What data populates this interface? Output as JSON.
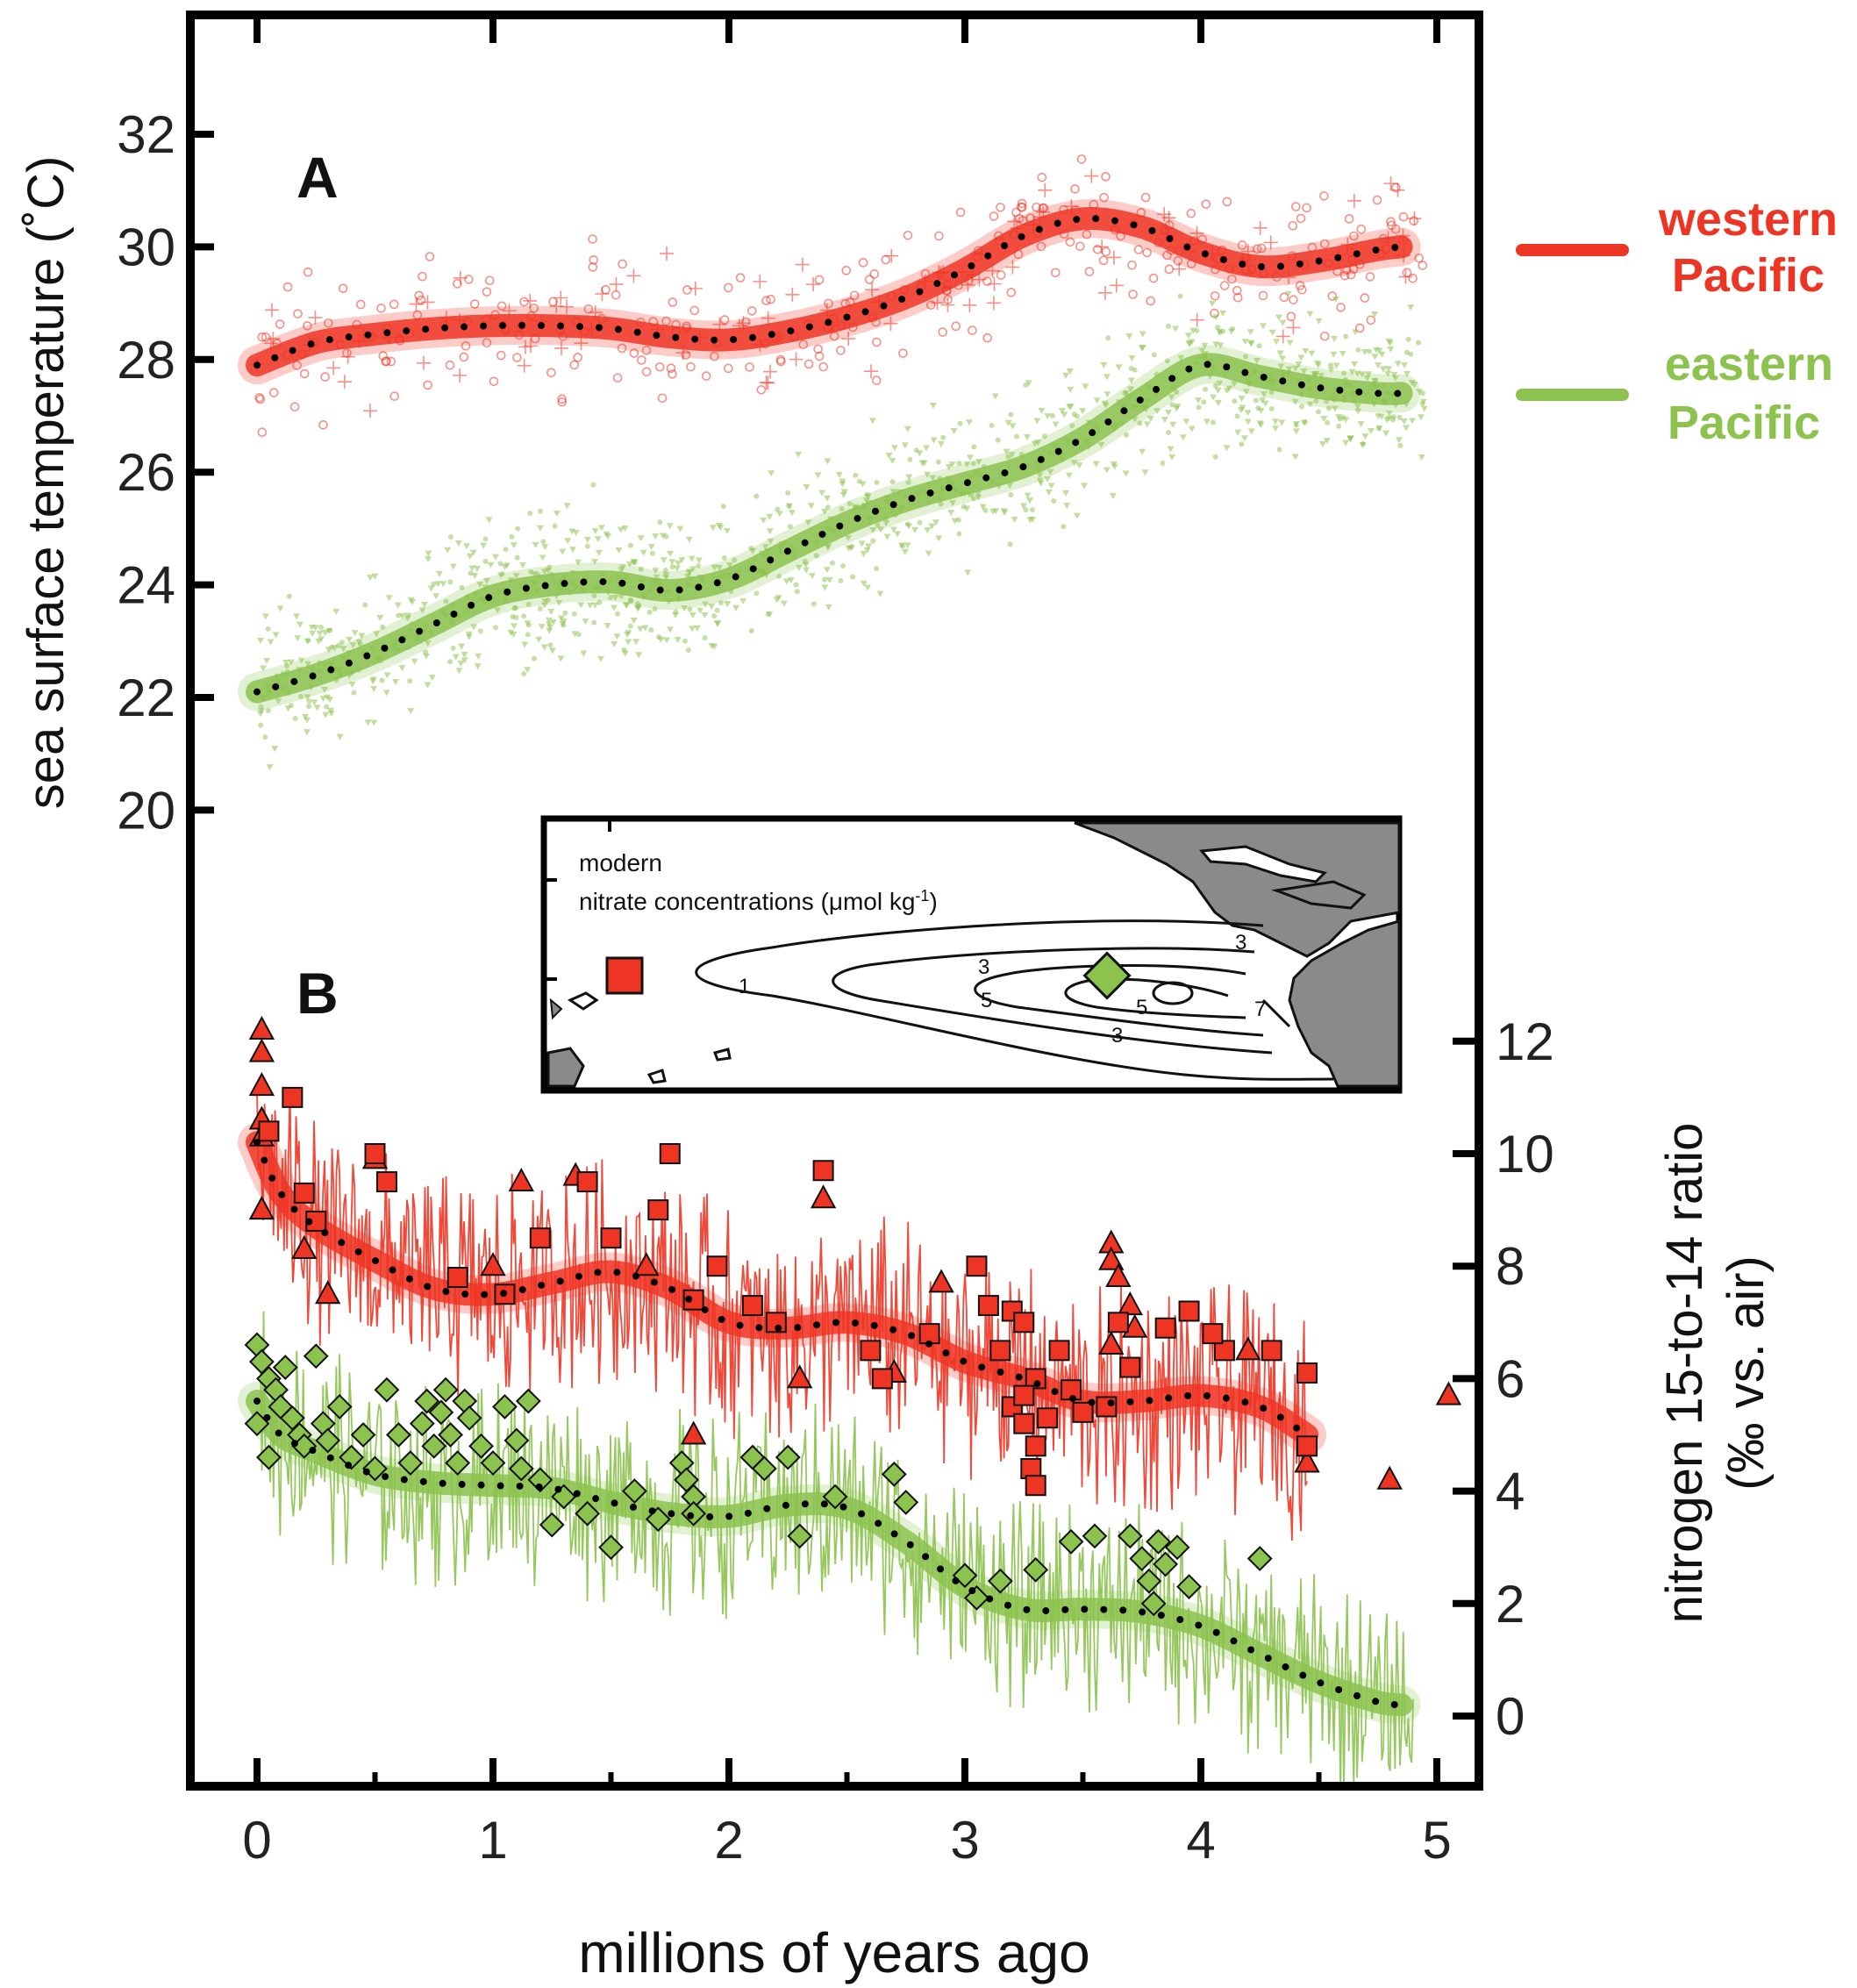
{
  "chart_data": [
    {
      "panel": "A",
      "type": "line",
      "ylabel": "sea surface temperature (˚C)",
      "xlabel": "millions of years ago",
      "xlim": [
        -0.3,
        5.2
      ],
      "ylim": [
        19,
        34
      ],
      "y_ticks": [
        20,
        22,
        24,
        26,
        28,
        30,
        32
      ],
      "legend": [
        {
          "name": "western Pacific",
          "line1": "western",
          "line2": "Pacific",
          "color": "#ee3524"
        },
        {
          "name": "eastern Pacific",
          "line1": "eastern",
          "line2": "Pacific",
          "color": "#8cc24e"
        }
      ],
      "series": [
        {
          "name": "western Pacific",
          "color": "#ee3524",
          "x": [
            0,
            0.25,
            0.5,
            0.75,
            1.0,
            1.25,
            1.5,
            1.75,
            2.0,
            2.25,
            2.5,
            2.75,
            3.0,
            3.25,
            3.5,
            3.75,
            4.0,
            4.25,
            4.5,
            4.75,
            4.85
          ],
          "y": [
            27.9,
            28.3,
            28.45,
            28.55,
            28.6,
            28.6,
            28.55,
            28.4,
            28.35,
            28.5,
            28.75,
            29.1,
            29.6,
            30.2,
            30.5,
            30.35,
            29.9,
            29.65,
            29.75,
            29.95,
            30.0
          ]
        },
        {
          "name": "eastern Pacific",
          "color": "#8cc24e",
          "x": [
            0,
            0.25,
            0.5,
            0.75,
            1.0,
            1.25,
            1.5,
            1.75,
            2.0,
            2.25,
            2.5,
            2.75,
            3.0,
            3.25,
            3.5,
            3.75,
            4.0,
            4.25,
            4.5,
            4.75,
            4.85
          ],
          "y": [
            22.1,
            22.4,
            22.8,
            23.3,
            23.8,
            24.0,
            24.05,
            23.9,
            24.1,
            24.6,
            25.1,
            25.5,
            25.8,
            26.1,
            26.6,
            27.3,
            27.9,
            27.7,
            27.5,
            27.4,
            27.4
          ]
        }
      ]
    },
    {
      "panel": "B",
      "type": "line",
      "ylabel_line1": "nitrogen 15-to-14 ratio",
      "ylabel_line2": "(‰ vs. air)",
      "xlabel": "millions of years ago",
      "xlim": [
        -0.3,
        5.2
      ],
      "ylim": [
        -1,
        13
      ],
      "y_ticks": [
        0,
        2,
        4,
        6,
        8,
        10,
        12
      ],
      "x_ticks": [
        0,
        1,
        2,
        3,
        4,
        5
      ],
      "series": [
        {
          "name": "western Pacific",
          "color": "#ee3524",
          "x": [
            0,
            0.1,
            0.25,
            0.5,
            0.75,
            1.0,
            1.25,
            1.5,
            1.75,
            2.0,
            2.25,
            2.5,
            2.75,
            3.0,
            3.25,
            3.5,
            3.75,
            4.0,
            4.25,
            4.45
          ],
          "y": [
            10.2,
            9.3,
            8.7,
            8.1,
            7.6,
            7.5,
            7.7,
            7.9,
            7.6,
            7.0,
            6.9,
            7.0,
            6.8,
            6.3,
            6.0,
            5.6,
            5.6,
            5.7,
            5.5,
            5.0
          ]
        },
        {
          "name": "eastern Pacific",
          "color": "#8cc24e",
          "x": [
            0,
            0.1,
            0.25,
            0.5,
            0.75,
            1.0,
            1.25,
            1.5,
            1.75,
            2.0,
            2.25,
            2.5,
            2.75,
            3.0,
            3.25,
            3.5,
            3.75,
            4.0,
            4.25,
            4.5,
            4.75,
            4.85
          ],
          "y": [
            5.6,
            5.0,
            4.7,
            4.3,
            4.15,
            4.1,
            4.05,
            3.8,
            3.6,
            3.55,
            3.75,
            3.7,
            3.1,
            2.3,
            1.9,
            1.9,
            1.85,
            1.6,
            1.1,
            0.6,
            0.25,
            0.2
          ]
        }
      ],
      "inset": {
        "title_line1": "modern",
        "title_line2": "nitrate concentrations (μmol kg",
        "title_sup": "-1",
        "title_close": ")",
        "contour_labels": [
          "1",
          "3",
          "5",
          "5",
          "7",
          "3",
          "3"
        ]
      }
    }
  ]
}
